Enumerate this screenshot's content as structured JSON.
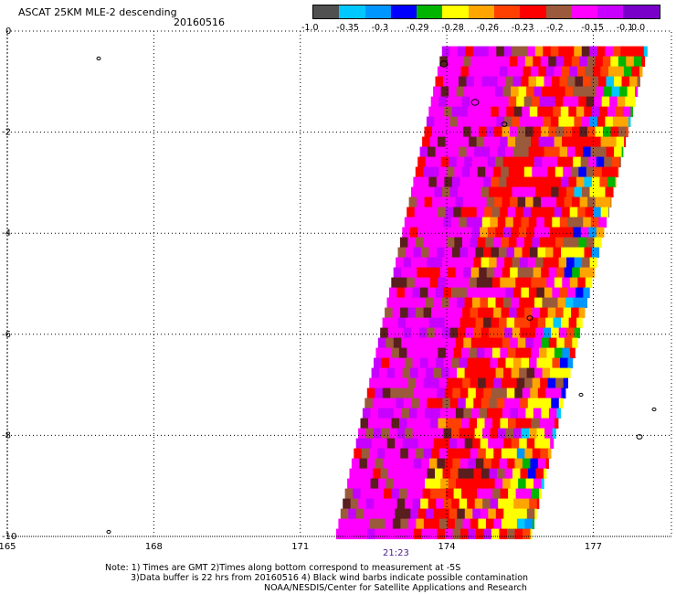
{
  "header": {
    "title": "ASCAT 25KM MLE-2 descending",
    "date": "20160516"
  },
  "colorbar": {
    "colors": [
      "#505050",
      "#00c8ff",
      "#0096ff",
      "#0000ff",
      "#00b400",
      "#ffff00",
      "#ffa500",
      "#ff4000",
      "#ff0000",
      "#9b5a3c",
      "#ff00ff",
      "#c800ff",
      "#7800c8"
    ],
    "labels": [
      "-1.0",
      "-0.35",
      "-0.3",
      "-0.29",
      "-0.28",
      "-0.26",
      "-0.23",
      "-0.2",
      "-0.15",
      "-0.1",
      "0.0"
    ]
  },
  "axes": {
    "x_ticks": [
      {
        "value": 165,
        "label": "165"
      },
      {
        "value": 168,
        "label": "168"
      },
      {
        "value": 171,
        "label": "171"
      },
      {
        "value": 174,
        "label": "174"
      },
      {
        "value": 177,
        "label": "177"
      }
    ],
    "y_ticks": [
      {
        "value": 0,
        "label": "0"
      },
      {
        "value": -2,
        "label": "-2"
      },
      {
        "value": -4,
        "label": "-4"
      },
      {
        "value": -6,
        "label": "-6"
      },
      {
        "value": -8,
        "label": "-8"
      },
      {
        "value": -10,
        "label": "-10"
      }
    ],
    "lon_range": [
      165,
      178.6
    ],
    "lat_range": [
      -10,
      0
    ]
  },
  "swath": {
    "time_label": "21:23",
    "top_lat": -0.3,
    "bottom_lat": -10,
    "top_lon_west": 173.9,
    "top_lon_east": 178.1,
    "bottom_lon_west": 171.7,
    "bottom_lon_east": 175.7
  },
  "notes": {
    "line1": "Note: 1) Times are GMT 2)Times along bottom correspond to measurement at -5S",
    "line2": "3)Data buffer is 22 hrs from 20160516 4) Black wind barbs indicate possible contamination",
    "line3": "NOAA/NESDIS/Center for Satellite Applications and Research"
  }
}
